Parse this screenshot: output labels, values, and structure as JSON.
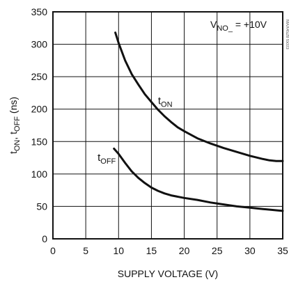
{
  "chart_data": {
    "type": "line",
    "title": "",
    "xlabel": "SUPPLY VOLTAGE (V)",
    "ylabel": {
      "t1_base": "t",
      "t1_sub": "ON",
      "sep": ", ",
      "t2_base": "t",
      "t2_sub": "OFF",
      "unit": " (ns)"
    },
    "xlim": [
      0,
      35
    ],
    "ylim": [
      0,
      350
    ],
    "x_ticks": [
      0,
      5,
      10,
      15,
      20,
      25,
      30,
      35
    ],
    "y_ticks": [
      0,
      50,
      100,
      150,
      200,
      250,
      300,
      350
    ],
    "grid": true,
    "annotation": {
      "base": "V",
      "sub": "NO_",
      "rest": " = +10V"
    },
    "side_text": "MAX4528 toc03",
    "series": [
      {
        "name": "tON",
        "label_base": "t",
        "label_sub": "ON",
        "label_at": [
          16,
          208
        ],
        "x": [
          9.5,
          10,
          11,
          12,
          13,
          14,
          15,
          16,
          17,
          18,
          19,
          20,
          22,
          24,
          26,
          28,
          30,
          32,
          33,
          34,
          35
        ],
        "y": [
          318,
          302,
          275,
          254,
          238,
          223,
          211,
          199,
          189,
          180,
          172,
          166,
          155,
          147,
          140,
          134,
          128,
          123,
          121,
          120,
          120
        ]
      },
      {
        "name": "tOFF",
        "label_base": "t",
        "label_sub": "OFF",
        "label_at": [
          6.8,
          120
        ],
        "x": [
          9.3,
          10,
          11,
          12,
          13,
          14,
          15,
          16,
          17,
          18,
          20,
          22,
          24,
          26,
          28,
          30,
          32,
          34,
          35
        ],
        "y": [
          139,
          131,
          117,
          104,
          94,
          86,
          79,
          74,
          70,
          67,
          63,
          60,
          56,
          53,
          50,
          48,
          46,
          44,
          43
        ]
      }
    ]
  }
}
